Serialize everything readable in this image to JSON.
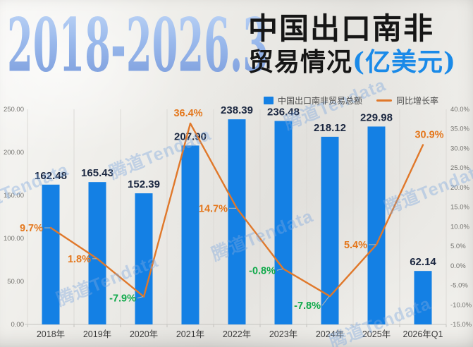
{
  "header": {
    "year_range": "2018-2026.3",
    "title_main": "中国出口南非",
    "title_sub": "贸易情况",
    "title_unit": "(亿美元)"
  },
  "legend": {
    "bar_label": "中国出口南非贸易总额",
    "line_label": "同比增长率"
  },
  "watermark": {
    "text": "腾道Tendata"
  },
  "chart_data": {
    "type": "bar",
    "subtype": "bar+line combo",
    "title": "2018-2026.3 中国出口南非贸易情况(亿美元)",
    "categories": [
      "2018年",
      "2019年",
      "2020年",
      "2021年",
      "2022年",
      "2023年",
      "2024年",
      "2025年",
      "2026年Q1"
    ],
    "series": [
      {
        "name": "中国出口南非贸易总额",
        "type": "bar",
        "axis": "left",
        "values": [
          162.48,
          165.43,
          152.39,
          207.9,
          238.39,
          236.48,
          218.12,
          229.98,
          62.14
        ],
        "labels": [
          "162.48",
          "165.43",
          "152.39",
          "207.90",
          "238.39",
          "236.48",
          "218.12",
          "229.98",
          "62.14"
        ]
      },
      {
        "name": "同比增长率",
        "type": "line",
        "axis": "right",
        "values": [
          9.7,
          1.8,
          -7.9,
          36.4,
          14.7,
          -0.8,
          -7.8,
          5.4,
          30.9
        ],
        "labels": [
          "9.7%",
          "1.8%",
          "-7.9%",
          "36.4%",
          "14.7%",
          "-0.8%",
          "-7.8%",
          "5.4%",
          "30.9%"
        ]
      }
    ],
    "left_axis": {
      "min": 0,
      "max": 250,
      "step": 50,
      "tick_labels": [
        "0.00",
        "50.00",
        "100.00",
        "150.00",
        "200.00",
        "250.00"
      ]
    },
    "right_axis": {
      "min": -15,
      "max": 40,
      "step": 5,
      "tick_labels": [
        "40.0%",
        "35.0%",
        "30.0%",
        "25.0%",
        "20.0%",
        "15.0%",
        "10.0%",
        "5.0%",
        "0.0%",
        "-5.0%",
        "-10.0%",
        "-15.0%"
      ]
    },
    "colors": {
      "bar": "#1480e4",
      "line": "#e0782a",
      "label_positive": "#e4771c",
      "label_negative": "#0fa94a",
      "bar_value_label": "#1b2740",
      "axis_text": "#73726e",
      "category_text": "#3b3b3b",
      "grid": "#dcdad6"
    },
    "grid": "vertical category separators only",
    "legend_position": "top-right",
    "ylim_left": [
      0,
      250
    ],
    "ylim_right": [
      -15,
      40
    ]
  }
}
